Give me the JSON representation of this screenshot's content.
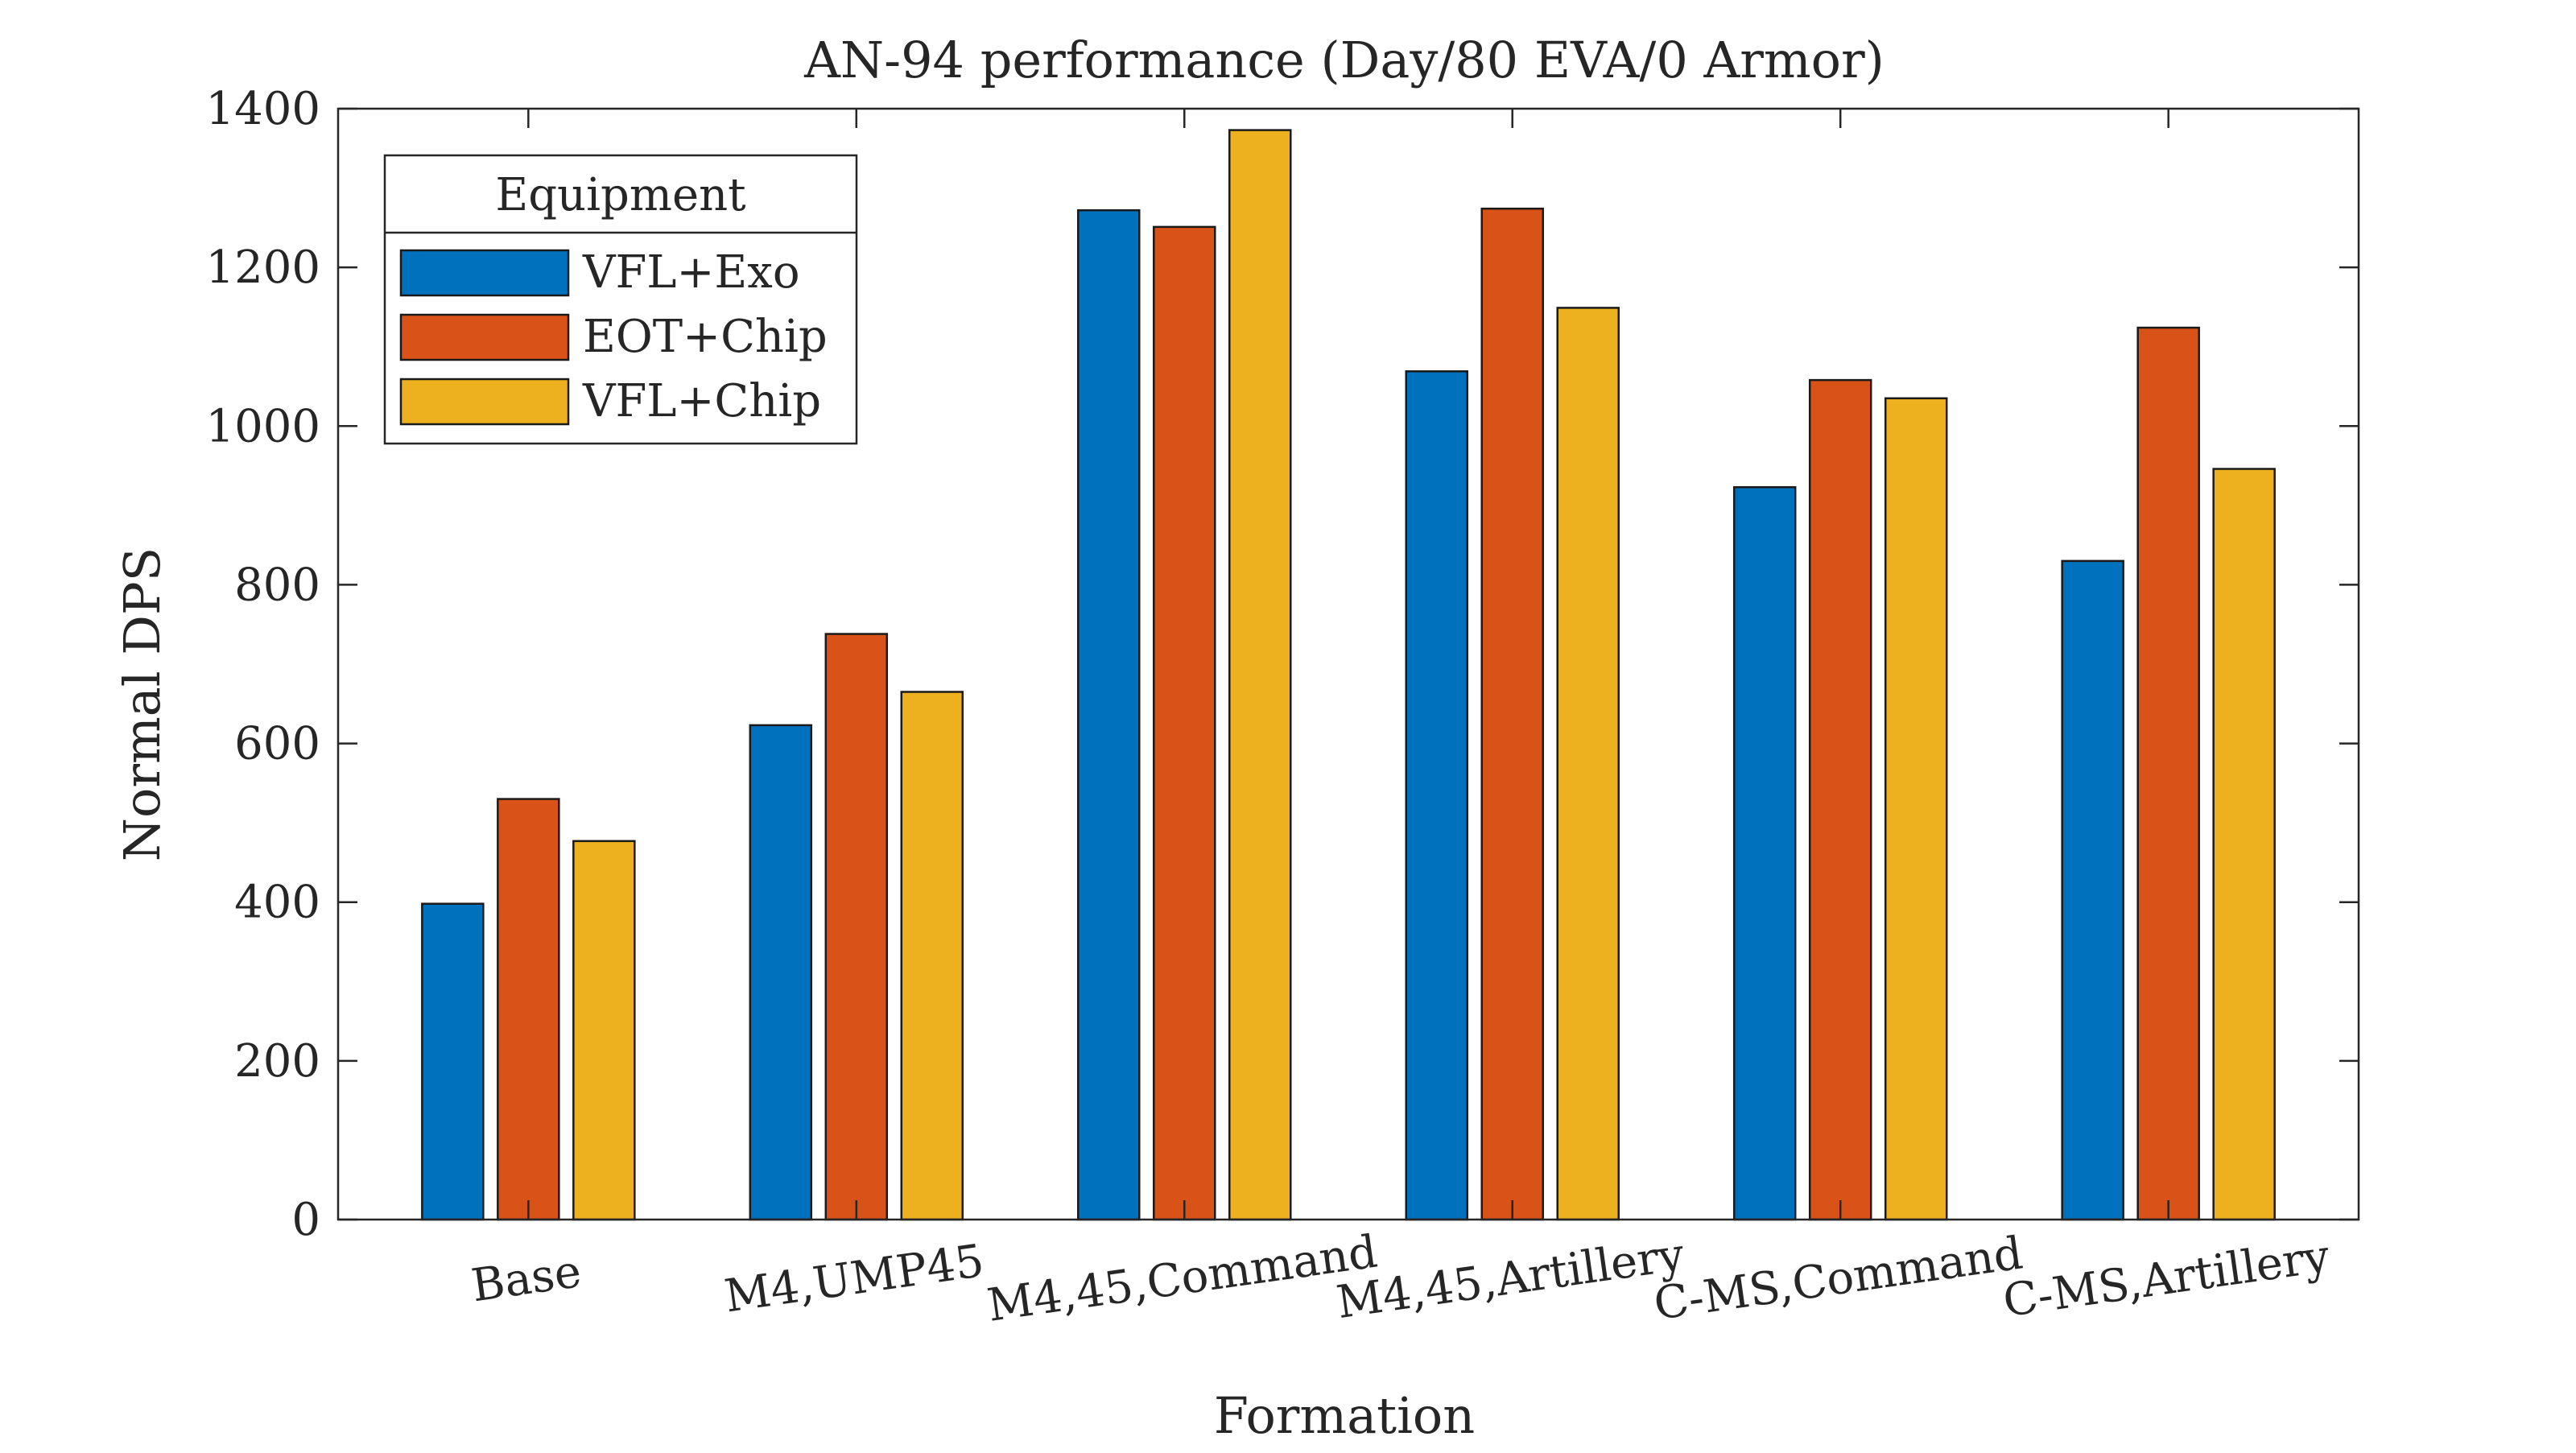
{
  "chart_data": {
    "type": "bar",
    "title": "AN-94 performance (Day/80 EVA/0 Armor)",
    "xlabel": "Formation",
    "ylabel": "Normal DPS",
    "categories": [
      "Base",
      "M4,UMP45",
      "M4,45,Command",
      "M4,45,Artillery",
      "C-MS,Command",
      "C-MS,Artillery"
    ],
    "ylim": [
      0,
      1400
    ],
    "yticks": [
      0,
      200,
      400,
      600,
      800,
      1000,
      1200,
      1400
    ],
    "legend_title": "Equipment",
    "legend_position": "top-left",
    "grid": false,
    "series": [
      {
        "name": "VFL+Exo",
        "color": "#0072BD",
        "values": [
          398,
          623,
          1272,
          1069,
          923,
          830
        ]
      },
      {
        "name": "EOT+Chip",
        "color": "#D95319",
        "values": [
          530,
          738,
          1251,
          1274,
          1058,
          1124
        ]
      },
      {
        "name": "VFL+Chip",
        "color": "#EDB120",
        "values": [
          477,
          665,
          1373,
          1149,
          1035,
          946
        ]
      }
    ]
  }
}
